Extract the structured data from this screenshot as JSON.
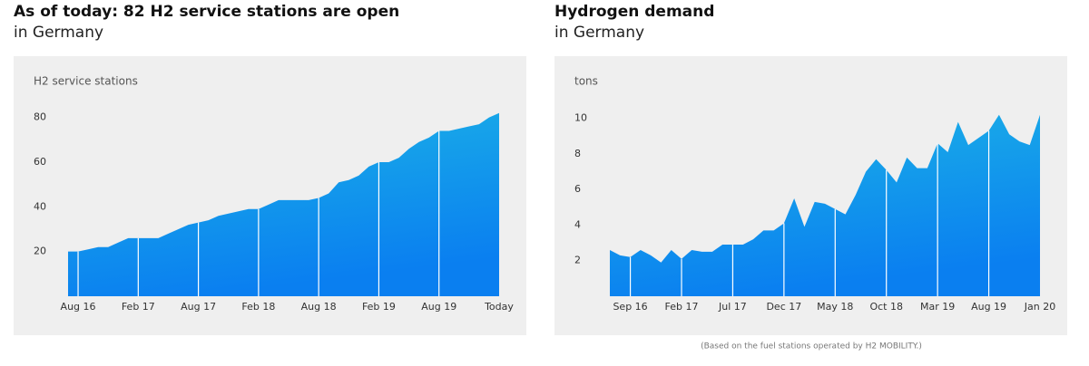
{
  "chart_data": [
    {
      "type": "area",
      "title": "As of today: 82 H2 service stations are open",
      "subtitle": "in Germany",
      "y_label": "H2 service stations",
      "categories": [
        null,
        "Aug 16",
        null,
        null,
        null,
        null,
        null,
        "Feb 17",
        null,
        null,
        null,
        null,
        null,
        "Aug 17",
        null,
        null,
        null,
        null,
        null,
        "Feb 18",
        null,
        null,
        null,
        null,
        null,
        "Aug 18",
        null,
        null,
        null,
        null,
        null,
        "Feb 19",
        null,
        null,
        null,
        null,
        null,
        "Aug 19",
        null,
        null,
        null,
        null,
        null,
        "Today"
      ],
      "values": [
        20,
        20,
        21,
        22,
        22,
        24,
        26,
        26,
        26,
        26,
        28,
        30,
        32,
        33,
        34,
        36,
        37,
        38,
        39,
        39,
        41,
        43,
        43,
        43,
        43,
        44,
        46,
        51,
        52,
        54,
        58,
        60,
        60,
        62,
        66,
        69,
        71,
        74,
        74,
        75,
        76,
        77,
        80,
        82
      ],
      "color": "#0a84ee",
      "ylim": [
        0,
        90
      ],
      "yticks": [
        20,
        40,
        60,
        80
      ]
    },
    {
      "type": "area",
      "title": "Hydrogen demand",
      "subtitle": "in Germany",
      "y_label": "tons",
      "categories": [
        null,
        null,
        "Sep 16",
        null,
        null,
        null,
        null,
        "Feb 17",
        null,
        null,
        null,
        null,
        "Jul 17",
        null,
        null,
        null,
        null,
        "Dec 17",
        null,
        null,
        null,
        null,
        "May 18",
        null,
        null,
        null,
        null,
        "Oct 18",
        null,
        null,
        null,
        null,
        "Mar 19",
        null,
        null,
        null,
        null,
        "Aug 19",
        null,
        null,
        null,
        null,
        "Jan 20"
      ],
      "values": [
        2.6,
        2.3,
        2.2,
        2.6,
        2.3,
        1.9,
        2.6,
        2.1,
        2.6,
        2.5,
        2.5,
        2.9,
        2.9,
        2.9,
        3.2,
        3.7,
        3.7,
        4.1,
        5.5,
        3.9,
        5.3,
        5.2,
        4.9,
        4.6,
        5.7,
        7.0,
        7.7,
        7.1,
        6.4,
        7.8,
        7.2,
        7.2,
        8.6,
        8.1,
        9.8,
        8.5,
        8.9,
        9.3,
        10.2,
        9.1,
        8.7,
        8.5,
        10.2
      ],
      "color": "#0a84ee",
      "ylim": [
        0,
        11
      ],
      "yticks": [
        2,
        4,
        6,
        8,
        10
      ],
      "note": "(Based on the fuel stations operated by H2 MOBILITY.)"
    }
  ]
}
